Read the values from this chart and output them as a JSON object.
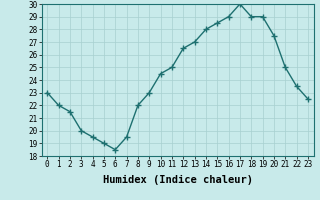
{
  "x": [
    0,
    1,
    2,
    3,
    4,
    5,
    6,
    7,
    8,
    9,
    10,
    11,
    12,
    13,
    14,
    15,
    16,
    17,
    18,
    19,
    20,
    21,
    22,
    23
  ],
  "y": [
    23,
    22,
    21.5,
    20,
    19.5,
    19,
    18.5,
    19.5,
    22,
    23,
    24.5,
    25,
    26.5,
    27,
    28,
    28.5,
    29,
    30,
    29,
    29,
    27.5,
    25,
    23.5,
    22.5
  ],
  "line_color": "#1e7070",
  "marker": "+",
  "marker_color": "#1e7070",
  "bg_color": "#c8eaea",
  "grid_color": "#a8d0d0",
  "xlabel": "Humidex (Indice chaleur)",
  "xlim": [
    -0.5,
    23.5
  ],
  "ylim": [
    18,
    30
  ],
  "yticks": [
    18,
    19,
    20,
    21,
    22,
    23,
    24,
    25,
    26,
    27,
    28,
    29,
    30
  ],
  "xticks": [
    0,
    1,
    2,
    3,
    4,
    5,
    6,
    7,
    8,
    9,
    10,
    11,
    12,
    13,
    14,
    15,
    16,
    17,
    18,
    19,
    20,
    21,
    22,
    23
  ],
  "tick_label_fontsize": 5.5,
  "xlabel_fontsize": 7.5,
  "line_width": 1.0,
  "marker_size": 4
}
